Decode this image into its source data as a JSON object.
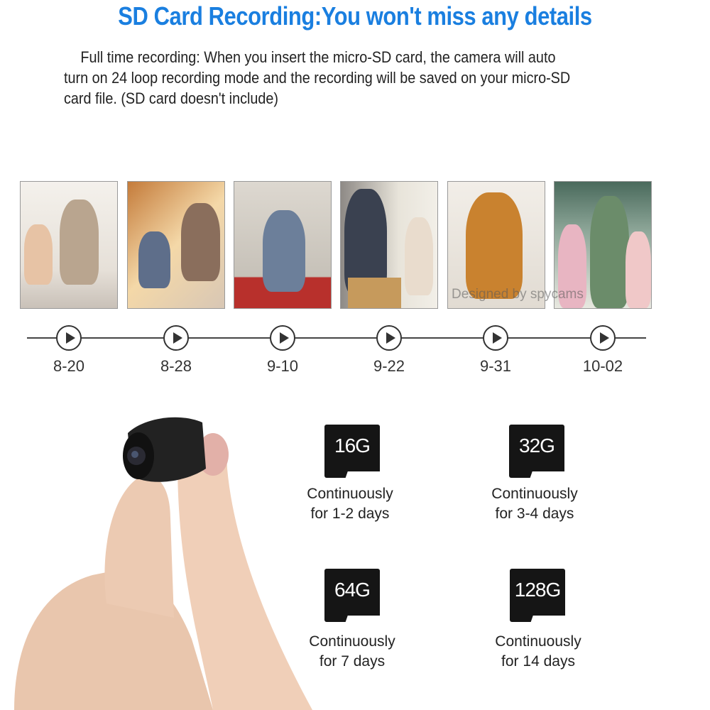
{
  "header": {
    "title": "SD Card Recording:You won't miss any details",
    "description": "Full time recording: When you insert the micro-SD card, the camera will auto turn on 24 loop recording mode and the recording will be saved on your micro-SD card file. (SD card doesn't include)"
  },
  "timeline": {
    "dates": [
      "8-20",
      "8-28",
      "9-10",
      "9-22",
      "9-31",
      "10-02"
    ],
    "watermark": "Designed by spycams",
    "icon": "play-circle-icon"
  },
  "cards": [
    {
      "capacity": "16G",
      "line1": "Continuously",
      "line2": "for 1-2 days"
    },
    {
      "capacity": "32G",
      "line1": "Continuously",
      "line2": "for 3-4 days"
    },
    {
      "capacity": "64G",
      "line1": "Continuously",
      "line2": "for 7 days"
    },
    {
      "capacity": "128G",
      "line1": "Continuously",
      "line2": "for 14 days"
    }
  ],
  "colors": {
    "title": "#1a7fe0",
    "card": "#151515"
  }
}
